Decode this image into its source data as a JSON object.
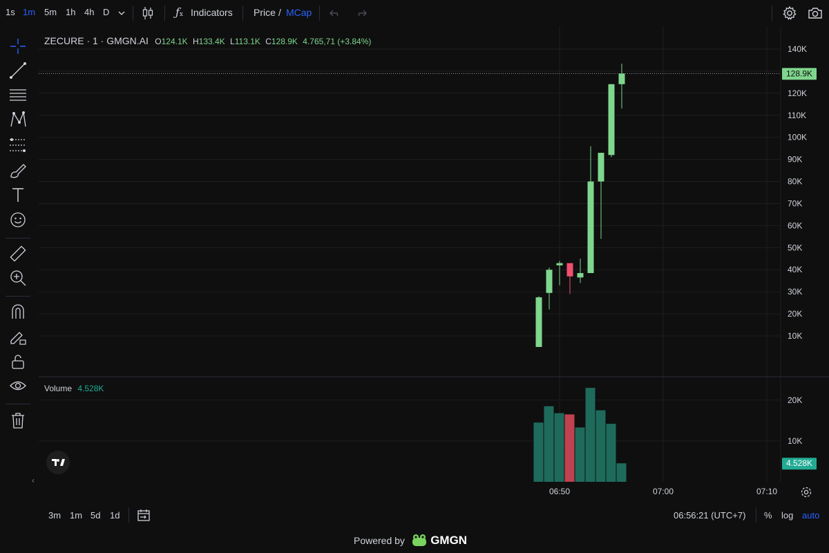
{
  "toolbar": {
    "timeframes": [
      "1s",
      "1m",
      "5m",
      "1h",
      "4h",
      "D"
    ],
    "active_timeframe": "1m",
    "indicators_label": "Indicators",
    "price_label": "Price",
    "price_sep": "/",
    "mcap_label": "MCap"
  },
  "legend": {
    "symbol": "ZECURE · 1 · GMGN.AI",
    "o_label": "O",
    "o_value": "124.1K",
    "h_label": "H",
    "h_value": "133.4K",
    "l_label": "L",
    "l_value": "113.1K",
    "c_label": "C",
    "c_value": "128.9K",
    "change": "4.765,71 (+3.84%)"
  },
  "volume_legend": {
    "label": "Volume",
    "value": "4.528K"
  },
  "price_axis": {
    "ticks": [
      "140K",
      "120K",
      "110K",
      "100K",
      "90K",
      "80K",
      "70K",
      "60K",
      "50K",
      "40K",
      "30K",
      "20K",
      "10K"
    ],
    "last_price_tag": "128.9K"
  },
  "volume_axis": {
    "ticks": [
      "20K",
      "10K"
    ],
    "last_volume_tag": "4.528K"
  },
  "time_axis": {
    "ticks": [
      "06:50",
      "07:00",
      "07:10"
    ]
  },
  "bottom": {
    "ranges": [
      "3m",
      "1m",
      "5d",
      "1d"
    ],
    "clock": "06:56:21 (UTC+7)",
    "percent_label": "%",
    "log_label": "log",
    "auto_label": "auto"
  },
  "footer": {
    "powered_by": "Powered by",
    "brand": "GMGN"
  },
  "colors": {
    "up": "#7fd68e",
    "down": "#f0506e",
    "vol_up": "#1e6b5c",
    "vol_down": "#c0424f",
    "accent": "#2962ff",
    "last_tag": "#7fd68e",
    "vol_tag": "#22ab94"
  },
  "chart_data": [
    {
      "type": "candlestick",
      "x_unit": "minutes after 06:50",
      "candles": [
        {
          "t": -2,
          "o": 5000,
          "h": 28000,
          "l": 5000,
          "c": 27500
        },
        {
          "t": -1,
          "o": 29500,
          "h": 41000,
          "l": 22000,
          "c": 40000
        },
        {
          "t": 0,
          "o": 42000,
          "h": 44000,
          "l": 33000,
          "c": 43000
        },
        {
          "t": 1,
          "o": 43000,
          "h": 43000,
          "l": 29000,
          "c": 37000
        },
        {
          "t": 2,
          "o": 36500,
          "h": 45000,
          "l": 34000,
          "c": 38500
        },
        {
          "t": 3,
          "o": 38500,
          "h": 96000,
          "l": 38500,
          "c": 80000
        },
        {
          "t": 4,
          "o": 80000,
          "h": 93000,
          "l": 54000,
          "c": 93000
        },
        {
          "t": 5,
          "o": 92000,
          "h": 124100,
          "l": 91000,
          "c": 124100
        },
        {
          "t": 6,
          "o": 124100,
          "h": 133400,
          "l": 113100,
          "c": 128900
        }
      ],
      "ylim": [
        0,
        140000
      ],
      "last_price": 128900
    },
    {
      "type": "bar",
      "title": "Volume",
      "values": [
        {
          "t": -2,
          "v": 14500,
          "up": true
        },
        {
          "t": -1,
          "v": 18500,
          "up": true
        },
        {
          "t": 0,
          "v": 16800,
          "up": true
        },
        {
          "t": 1,
          "v": 16500,
          "up": false
        },
        {
          "t": 2,
          "v": 13300,
          "up": true
        },
        {
          "t": 3,
          "v": 23000,
          "up": true
        },
        {
          "t": 4,
          "v": 17500,
          "up": true
        },
        {
          "t": 5,
          "v": 14200,
          "up": true
        },
        {
          "t": 6,
          "v": 4528,
          "up": true
        }
      ],
      "ylim": [
        0,
        24000
      ]
    }
  ]
}
